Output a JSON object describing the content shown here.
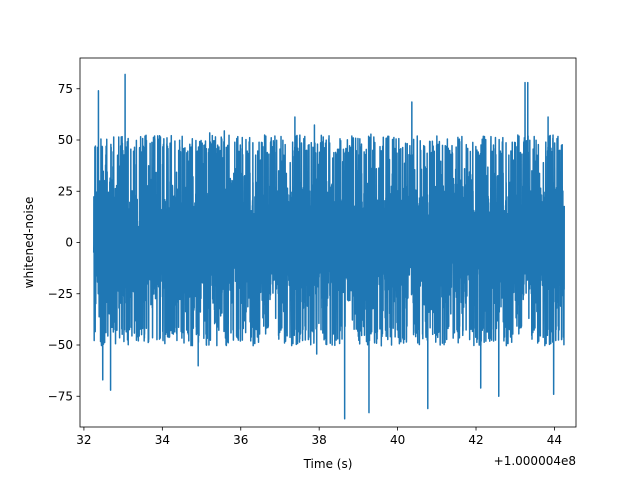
{
  "chart_data": {
    "type": "line",
    "title": "",
    "xlabel": "Time (s)",
    "ylabel": "whitened-noise",
    "x_offset_label": "+1.000004e8",
    "xlim": [
      31.9,
      44.55
    ],
    "ylim": [
      -90,
      90
    ],
    "xticks": [
      32,
      34,
      36,
      38,
      40,
      42,
      44
    ],
    "yticks": [
      -75,
      -50,
      -25,
      0,
      25,
      50,
      75
    ],
    "grid": false,
    "line_color": "#1f77b4",
    "series": [
      {
        "x_start": 32.25,
        "x_end": 44.25,
        "typical_range": [
          -48,
          50
        ],
        "std": 16,
        "values": [
          {
            "x": 33.05,
            "y": 82
          },
          {
            "x": 32.37,
            "y": 74
          },
          {
            "x": 43.25,
            "y": 78
          },
          {
            "x": 43.32,
            "y": 78
          },
          {
            "x": 38.65,
            "y": -86
          },
          {
            "x": 39.27,
            "y": -83
          },
          {
            "x": 40.77,
            "y": -81
          },
          {
            "x": 32.48,
            "y": -67
          },
          {
            "x": 32.68,
            "y": -72
          },
          {
            "x": 42.58,
            "y": -75
          },
          {
            "x": 43.98,
            "y": -74
          },
          {
            "x": 42.12,
            "y": -71
          }
        ]
      }
    ]
  }
}
